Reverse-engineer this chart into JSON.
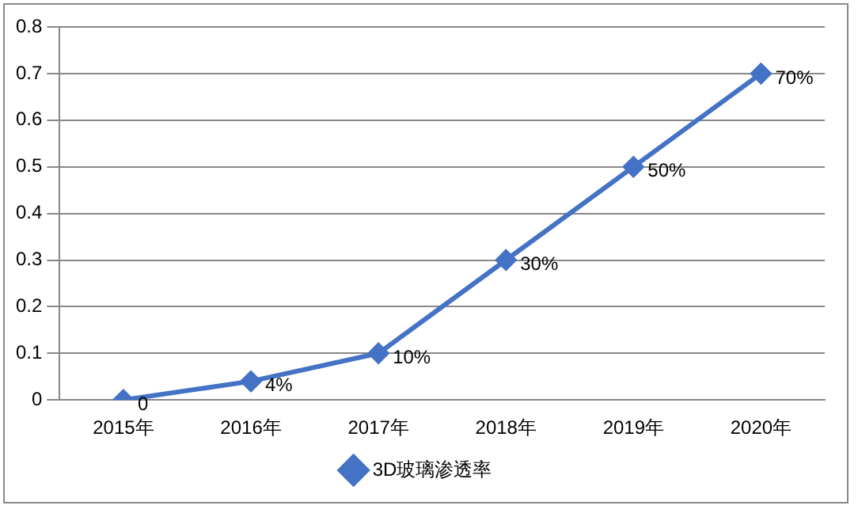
{
  "chart_data": {
    "type": "line",
    "categories": [
      "2015年",
      "2016年",
      "2017年",
      "2018年",
      "2019年",
      "2020年"
    ],
    "series": [
      {
        "name": "3D玻璃渗透率",
        "color": "#4472c4",
        "values": [
          0,
          0.04,
          0.1,
          0.3,
          0.5,
          0.7
        ],
        "value_labels": [
          "0",
          "4%",
          "10%",
          "30%",
          "50%",
          "70%"
        ]
      }
    ],
    "ylim": [
      0,
      0.8
    ],
    "yticks": [
      0,
      0.1,
      0.2,
      0.3,
      0.4,
      0.5,
      0.6,
      0.7,
      0.8
    ],
    "grid": "y",
    "legend": "bottom",
    "marker": "diamond",
    "line_style": "solid"
  }
}
